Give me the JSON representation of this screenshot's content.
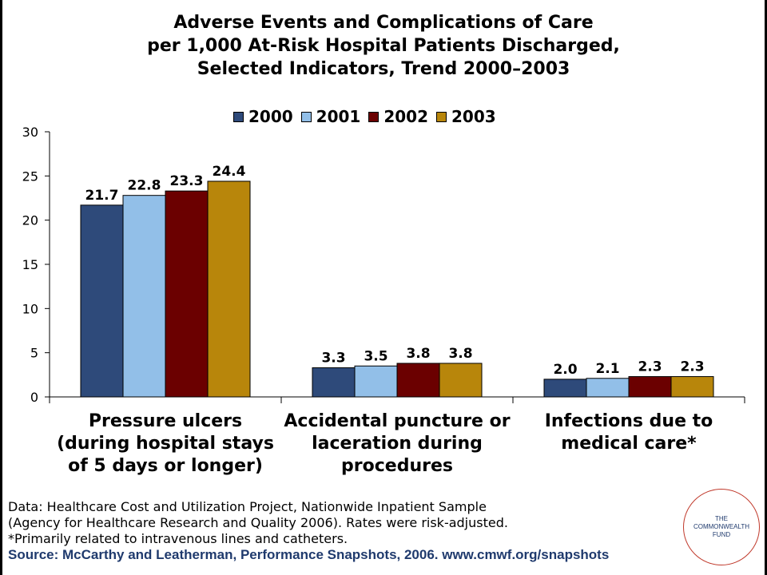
{
  "title": {
    "line1": "Adverse Events and Complications of Care",
    "line2": "per 1,000 At-Risk Hospital Patients Discharged,",
    "line3": "Selected Indicators, Trend 2000–2003"
  },
  "chart_data": {
    "type": "bar",
    "title": "Adverse Events and Complications of Care per 1,000 At-Risk Hospital Patients Discharged, Selected Indicators, Trend 2000–2003",
    "categories": [
      "Pressure ulcers\n(during hospital stays\nof 5 days or longer)",
      "Accidental puncture or\nlaceration during\nprocedures",
      "Infections due to\nmedical care*"
    ],
    "series": [
      {
        "name": "2000",
        "color": "#2e4a7a",
        "values": [
          21.7,
          3.3,
          2.0
        ],
        "labels": [
          "21.7",
          "3.3",
          "2.0"
        ]
      },
      {
        "name": "2001",
        "color": "#92bfe8",
        "values": [
          22.8,
          3.5,
          2.1
        ],
        "labels": [
          "22.8",
          "3.5",
          "2.1"
        ]
      },
      {
        "name": "2002",
        "color": "#6b0000",
        "values": [
          23.3,
          3.8,
          2.3
        ],
        "labels": [
          "23.3",
          "3.8",
          "2.3"
        ]
      },
      {
        "name": "2003",
        "color": "#b8860b",
        "values": [
          24.4,
          3.8,
          2.3
        ],
        "labels": [
          "24.4",
          "3.8",
          "2.3"
        ]
      }
    ],
    "ylim": [
      0,
      30
    ],
    "yticks": [
      "0",
      "5",
      "10",
      "15",
      "20",
      "25",
      "30"
    ],
    "xlabel": "",
    "ylabel": "",
    "legend": "top",
    "grid": false
  },
  "notes": {
    "line1": "Data: Healthcare Cost and Utilization Project, Nationwide Inpatient Sample",
    "line2": "(Agency for Healthcare Research and Quality 2006). Rates were risk-adjusted.",
    "line3": "*Primarily related to intravenous lines and catheters.",
    "source": "Source: McCarthy and Leatherman, Performance Snapshots, 2006. www.cmwf.org/snapshots"
  },
  "logo": {
    "line1": "THE",
    "line2": "COMMONWEALTH",
    "line3": "FUND"
  }
}
